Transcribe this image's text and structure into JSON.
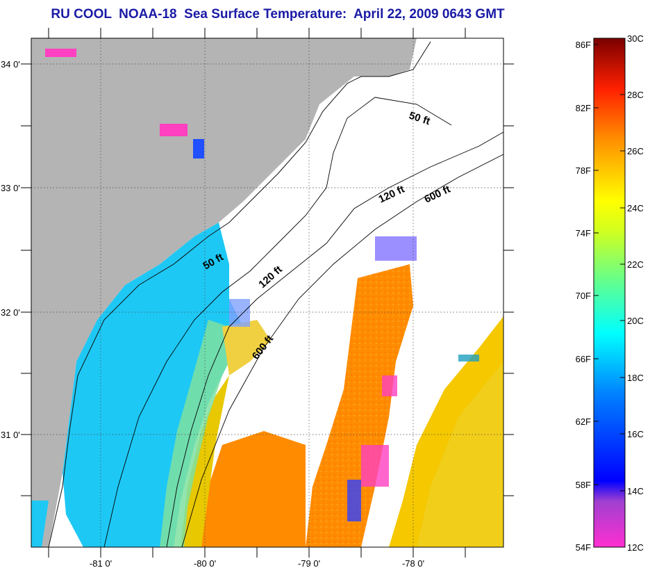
{
  "title": "RU COOL  NOAA-18  Sea Surface Temperature:  April 22, 2009 0643 GMT",
  "map": {
    "lon_labels": [
      "-81 0'",
      "-80 0'",
      "-79 0'",
      "-78 0'"
    ],
    "lat_labels": [
      "34 0'",
      "33 0'",
      "32 0'",
      "31 0'"
    ],
    "contours": [
      {
        "label": "50 ft",
        "depth_ft": 50
      },
      {
        "label": "120 ft",
        "depth_ft": 120
      },
      {
        "label": "600 ft",
        "depth_ft": 600
      },
      {
        "label": "50 ft",
        "depth_ft": 50
      },
      {
        "label": "120 ft",
        "depth_ft": 120
      },
      {
        "label": "600 ft",
        "depth_ft": 600
      }
    ],
    "colors": {
      "land": "#b4b4b4",
      "cloud": "#ffffff",
      "nearshore": "#00c8ff",
      "gulfstream": "#ff8c00",
      "offshore": "#ffd000"
    }
  },
  "colorbar": {
    "fahrenheit_labels": [
      "86F",
      "82F",
      "78F",
      "74F",
      "70F",
      "66F",
      "62F",
      "58F",
      "54F"
    ],
    "celsius_labels": [
      "30C",
      "28C",
      "26C",
      "24C",
      "22C",
      "20C",
      "18C",
      "16C",
      "14C",
      "12C"
    ],
    "colors": [
      "#800000",
      "#ff0000",
      "#ff7f00",
      "#ffff00",
      "#7fff7f",
      "#00ffff",
      "#007fff",
      "#0000ff",
      "#ff2fc8"
    ]
  }
}
